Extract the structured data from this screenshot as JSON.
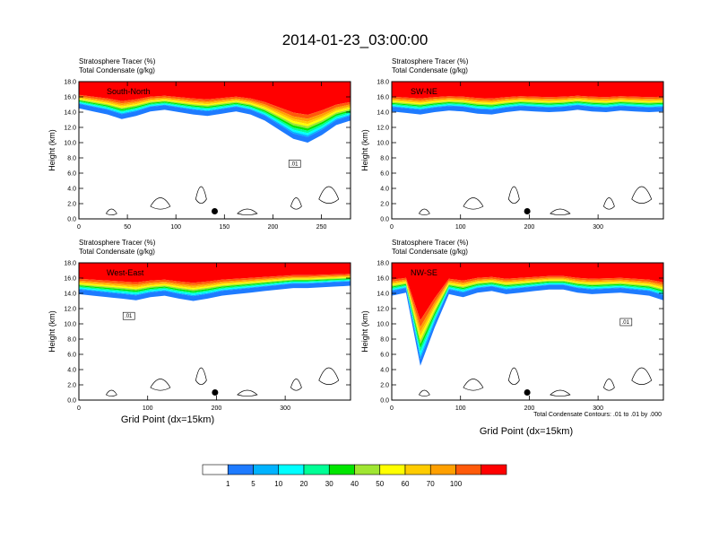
{
  "title": "2014-01-23_03:00:00",
  "colors": {
    "levels": [
      "#ffffff",
      "#1e7bff",
      "#00b3ff",
      "#00ffff",
      "#00ff96",
      "#00e600",
      "#a0e632",
      "#ffff00",
      "#ffcc00",
      "#ffa000",
      "#ff5a0a",
      "#ff0000"
    ],
    "contour": "#000000",
    "frame": "#000000"
  },
  "colorbar": {
    "labels": [
      "1",
      "5",
      "10",
      "20",
      "30",
      "40",
      "50",
      "60",
      "70",
      "100"
    ]
  },
  "contour_note": "Total Condensate Contours: .01 to .01 by .000",
  "chart_data": [
    {
      "type": "heatmap",
      "panel_label": "South-North",
      "subtitle_1": "Stratosphere Tracer   (%)",
      "subtitle_2": "Total Condensate   (g/kg)",
      "ylabel": "Height (km)",
      "xlabel": "",
      "xlim": [
        0,
        280
      ],
      "ylim": [
        0,
        18
      ],
      "xticks": [
        "0",
        "50",
        "100",
        "150",
        "200",
        "250"
      ],
      "xtick_values": [
        0,
        50,
        100,
        150,
        200,
        250
      ],
      "yticks": [
        "0.0",
        "2.0",
        "4.0",
        "6.0",
        "8.0",
        "10.0",
        "12.0",
        "14.0",
        "16.0",
        "18.0"
      ],
      "tropopause_km": [
        15.0,
        14.6,
        14.2,
        13.6,
        14.0,
        14.6,
        14.8,
        14.5,
        14.2,
        14.0,
        14.3,
        14.6,
        14.2,
        13.4,
        12.2,
        11.0,
        10.5,
        11.5,
        12.8,
        13.4
      ],
      "contour_label": ".01",
      "contour_label_pos": [
        222,
        7.0
      ],
      "marker": [
        140,
        1.0
      ]
    },
    {
      "type": "heatmap",
      "panel_label": "SW-NE",
      "subtitle_1": "Stratosphere Tracer   (%)",
      "subtitle_2": "Total Condensate   (g/kg)",
      "ylabel": "Height (km)",
      "xlabel": "",
      "xlim": [
        0,
        395
      ],
      "ylim": [
        0,
        18
      ],
      "xticks": [
        "0",
        "100",
        "200",
        "300"
      ],
      "xtick_values": [
        0,
        100,
        200,
        300
      ],
      "yticks": [
        "0.0",
        "2.0",
        "4.0",
        "6.0",
        "8.0",
        "10.0",
        "12.0",
        "14.0",
        "16.0",
        "18.0"
      ],
      "tropopause_km": [
        14.6,
        14.4,
        14.2,
        14.5,
        14.7,
        14.6,
        14.3,
        14.2,
        14.5,
        14.7,
        14.6,
        14.5,
        14.6,
        14.8,
        14.6,
        14.5,
        14.7,
        14.6,
        14.5,
        14.6
      ],
      "contour_label": "",
      "contour_label_pos": [
        0,
        0
      ],
      "marker": [
        197,
        1.0
      ]
    },
    {
      "type": "heatmap",
      "panel_label": "West-East",
      "subtitle_1": "Stratosphere Tracer   (%)",
      "subtitle_2": "Total Condensate   (g/kg)",
      "ylabel": "Height (km)",
      "xlabel": "Grid Point (dx=15km)",
      "xlim": [
        0,
        395
      ],
      "ylim": [
        0,
        18
      ],
      "xticks": [
        "0",
        "100",
        "200",
        "300"
      ],
      "xtick_values": [
        0,
        100,
        200,
        300
      ],
      "yticks": [
        "0.0",
        "2.0",
        "4.0",
        "6.0",
        "8.0",
        "10.0",
        "12.0",
        "14.0",
        "16.0",
        "18.0"
      ],
      "tropopause_km": [
        14.4,
        14.2,
        14.0,
        13.8,
        13.6,
        14.0,
        14.2,
        13.8,
        13.5,
        13.8,
        14.2,
        14.4,
        14.6,
        14.8,
        15.0,
        15.2,
        15.2,
        15.3,
        15.4,
        15.5
      ],
      "contour_label": ".01",
      "contour_label_pos": [
        72,
        10.8
      ],
      "marker": [
        198,
        1.0
      ]
    },
    {
      "type": "heatmap",
      "panel_label": "NW-SE",
      "subtitle_1": "Stratosphere Tracer   (%)",
      "subtitle_2": "Total Condensate   (g/kg)",
      "ylabel": "Height (km)",
      "xlabel": "Grid Point (dx=15km)",
      "xlim": [
        0,
        395
      ],
      "ylim": [
        0,
        18
      ],
      "xticks": [
        "0",
        "100",
        "200",
        "300"
      ],
      "xtick_values": [
        0,
        100,
        200,
        300
      ],
      "yticks": [
        "0.0",
        "2.0",
        "4.0",
        "6.0",
        "8.0",
        "10.0",
        "12.0",
        "14.0",
        "16.0",
        "18.0"
      ],
      "tropopause_km": [
        14.2,
        14.6,
        5.0,
        10.0,
        14.4,
        14.0,
        14.6,
        14.8,
        14.4,
        14.6,
        14.8,
        15.0,
        15.0,
        14.6,
        14.4,
        14.5,
        14.6,
        14.4,
        14.2,
        13.6
      ],
      "contour_label": ".01",
      "contour_label_pos": [
        340,
        10.0
      ],
      "marker": [
        197,
        1.0
      ]
    }
  ]
}
